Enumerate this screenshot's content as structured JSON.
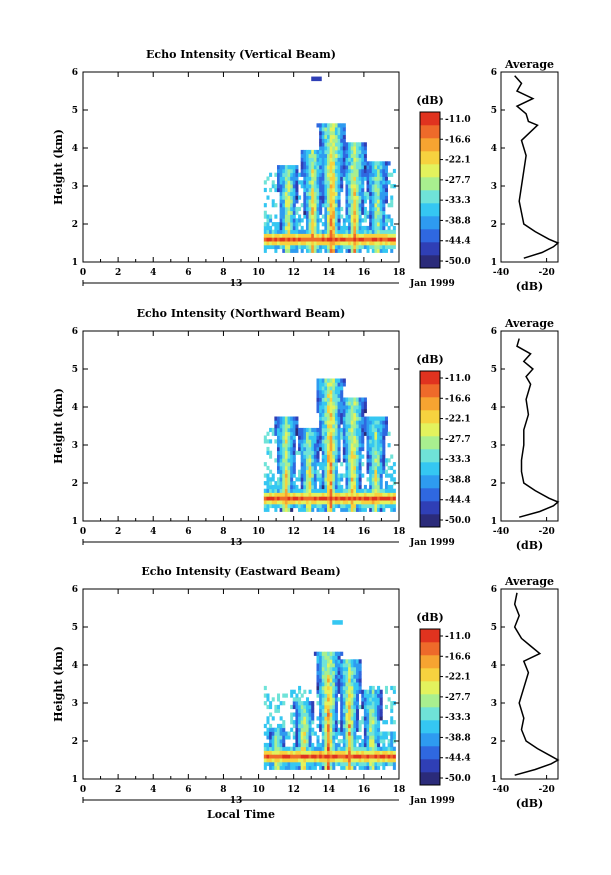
{
  "figure": {
    "date_label": "Jan 1999",
    "day_label": "13",
    "x_axis_label": "Local Time",
    "y_axis_label": "Height (km)",
    "avg_title": "Average",
    "avg_xlabel": "(dB)",
    "colorbar_unit": "(dB)"
  },
  "colorbar_levels": [
    "-11.0",
    "-16.6",
    "-22.1",
    "-27.7",
    "-33.3",
    "-38.8",
    "-44.4",
    "-50.0"
  ],
  "colorscale": [
    "#2b2b7a",
    "#2f3fb6",
    "#2f68e0",
    "#2e9bf0",
    "#35c7f2",
    "#6fe3d8",
    "#a9ef8f",
    "#e3f25d",
    "#f6d23f",
    "#f6a431",
    "#ee6a2a",
    "#e0331f"
  ],
  "chart_data": [
    {
      "type": "heatmap",
      "title": "Echo Intensity (Vertical Beam)",
      "xlabel": "",
      "ylabel": "Height (km)",
      "xlim": [
        0,
        18
      ],
      "ylim": [
        1,
        6
      ],
      "x_ticks": [
        0,
        2,
        4,
        6,
        8,
        10,
        12,
        14,
        16,
        18
      ],
      "y_ticks": [
        1,
        2,
        3,
        4,
        5,
        6
      ],
      "color_range_db": [
        -50.0,
        -11.0
      ],
      "data_start_time": 10.3,
      "data_end_time": 17.8,
      "cores": [
        {
          "time": 11.6,
          "top": 3.5,
          "peak_db": -22
        },
        {
          "time": 13.0,
          "top": 3.9,
          "peak_db": -20
        },
        {
          "time": 14.1,
          "top": 4.6,
          "peak_db": -14
        },
        {
          "time": 15.4,
          "top": 4.1,
          "peak_db": -18
        },
        {
          "time": 16.7,
          "top": 3.6,
          "peak_db": -24
        }
      ],
      "isolated_echo": {
        "time": 13.3,
        "height": 5.8,
        "db": -44
      },
      "avg_profile": {
        "title": "Average",
        "xlabel": "(dB)",
        "xlim": [
          -40,
          -15
        ],
        "ylim": [
          1,
          6
        ],
        "x_ticks": [
          -40,
          -20
        ],
        "height": [
          1.1,
          1.25,
          1.4,
          1.5,
          1.6,
          1.8,
          2.0,
          2.3,
          2.6,
          3.0,
          3.4,
          3.8,
          4.2,
          4.6,
          4.7,
          4.9,
          5.1,
          5.3,
          5.5,
          5.7,
          5.9
        ],
        "db": [
          -30,
          -22,
          -17,
          -15,
          -19,
          -25,
          -30,
          -31,
          -32,
          -31,
          -30,
          -29,
          -31,
          -24,
          -28,
          -29,
          -33,
          -26,
          -33,
          -31,
          -34
        ]
      }
    },
    {
      "type": "heatmap",
      "title": "Echo Intensity (Northward Beam)",
      "xlabel": "",
      "ylabel": "Height (km)",
      "xlim": [
        0,
        18
      ],
      "ylim": [
        1,
        6
      ],
      "x_ticks": [
        0,
        2,
        4,
        6,
        8,
        10,
        12,
        14,
        16,
        18
      ],
      "y_ticks": [
        1,
        2,
        3,
        4,
        5,
        6
      ],
      "color_range_db": [
        -50.0,
        -11.0
      ],
      "data_start_time": 10.3,
      "data_end_time": 17.8,
      "cores": [
        {
          "time": 11.5,
          "top": 3.7,
          "peak_db": -21
        },
        {
          "time": 12.8,
          "top": 3.4,
          "peak_db": -22
        },
        {
          "time": 14.0,
          "top": 4.7,
          "peak_db": -14
        },
        {
          "time": 15.3,
          "top": 4.2,
          "peak_db": -18
        },
        {
          "time": 16.6,
          "top": 3.7,
          "peak_db": -24
        }
      ],
      "isolated_echo": null,
      "avg_profile": {
        "title": "Average",
        "xlabel": "(dB)",
        "xlim": [
          -40,
          -15
        ],
        "ylim": [
          1,
          6
        ],
        "x_ticks": [
          -40,
          -20
        ],
        "height": [
          1.1,
          1.25,
          1.4,
          1.5,
          1.6,
          1.8,
          2.0,
          2.3,
          2.6,
          3.0,
          3.4,
          3.8,
          4.2,
          4.6,
          4.8,
          5.0,
          5.2,
          5.4,
          5.6,
          5.8
        ],
        "db": [
          -32,
          -23,
          -17,
          -15,
          -19,
          -25,
          -30,
          -31,
          -31,
          -30,
          -30,
          -28,
          -29,
          -27,
          -29,
          -26,
          -30,
          -27,
          -33,
          -32
        ]
      }
    },
    {
      "type": "heatmap",
      "title": "Echo Intensity (Eastward Beam)",
      "xlabel": "Local Time",
      "ylabel": "Height (km)",
      "xlim": [
        0,
        18
      ],
      "ylim": [
        1,
        6
      ],
      "x_ticks": [
        0,
        2,
        4,
        6,
        8,
        10,
        12,
        14,
        16,
        18
      ],
      "y_ticks": [
        1,
        2,
        3,
        4,
        5,
        6
      ],
      "color_range_db": [
        -50.0,
        -11.0
      ],
      "data_start_time": 10.3,
      "data_end_time": 17.8,
      "cores": [
        {
          "time": 11.0,
          "top": 2.3,
          "peak_db": -24
        },
        {
          "time": 12.5,
          "top": 3.0,
          "peak_db": -20
        },
        {
          "time": 13.9,
          "top": 4.3,
          "peak_db": -15
        },
        {
          "time": 15.1,
          "top": 4.1,
          "peak_db": -18
        },
        {
          "time": 16.4,
          "top": 3.3,
          "peak_db": -23
        }
      ],
      "isolated_echo": {
        "time": 14.5,
        "height": 5.1,
        "db": -36
      },
      "avg_profile": {
        "title": "Average",
        "xlabel": "(dB)",
        "xlim": [
          -40,
          -15
        ],
        "ylim": [
          1,
          6
        ],
        "x_ticks": [
          -40,
          -20
        ],
        "height": [
          1.1,
          1.25,
          1.4,
          1.5,
          1.6,
          1.8,
          2.0,
          2.3,
          2.6,
          3.0,
          3.4,
          3.8,
          4.1,
          4.3,
          4.5,
          4.7,
          5.0,
          5.3,
          5.6,
          5.9
        ],
        "db": [
          -34,
          -25,
          -18,
          -15,
          -18,
          -24,
          -29,
          -31,
          -30,
          -32,
          -30,
          -28,
          -30,
          -23,
          -27,
          -31,
          -34,
          -32,
          -34,
          -33
        ]
      }
    }
  ]
}
